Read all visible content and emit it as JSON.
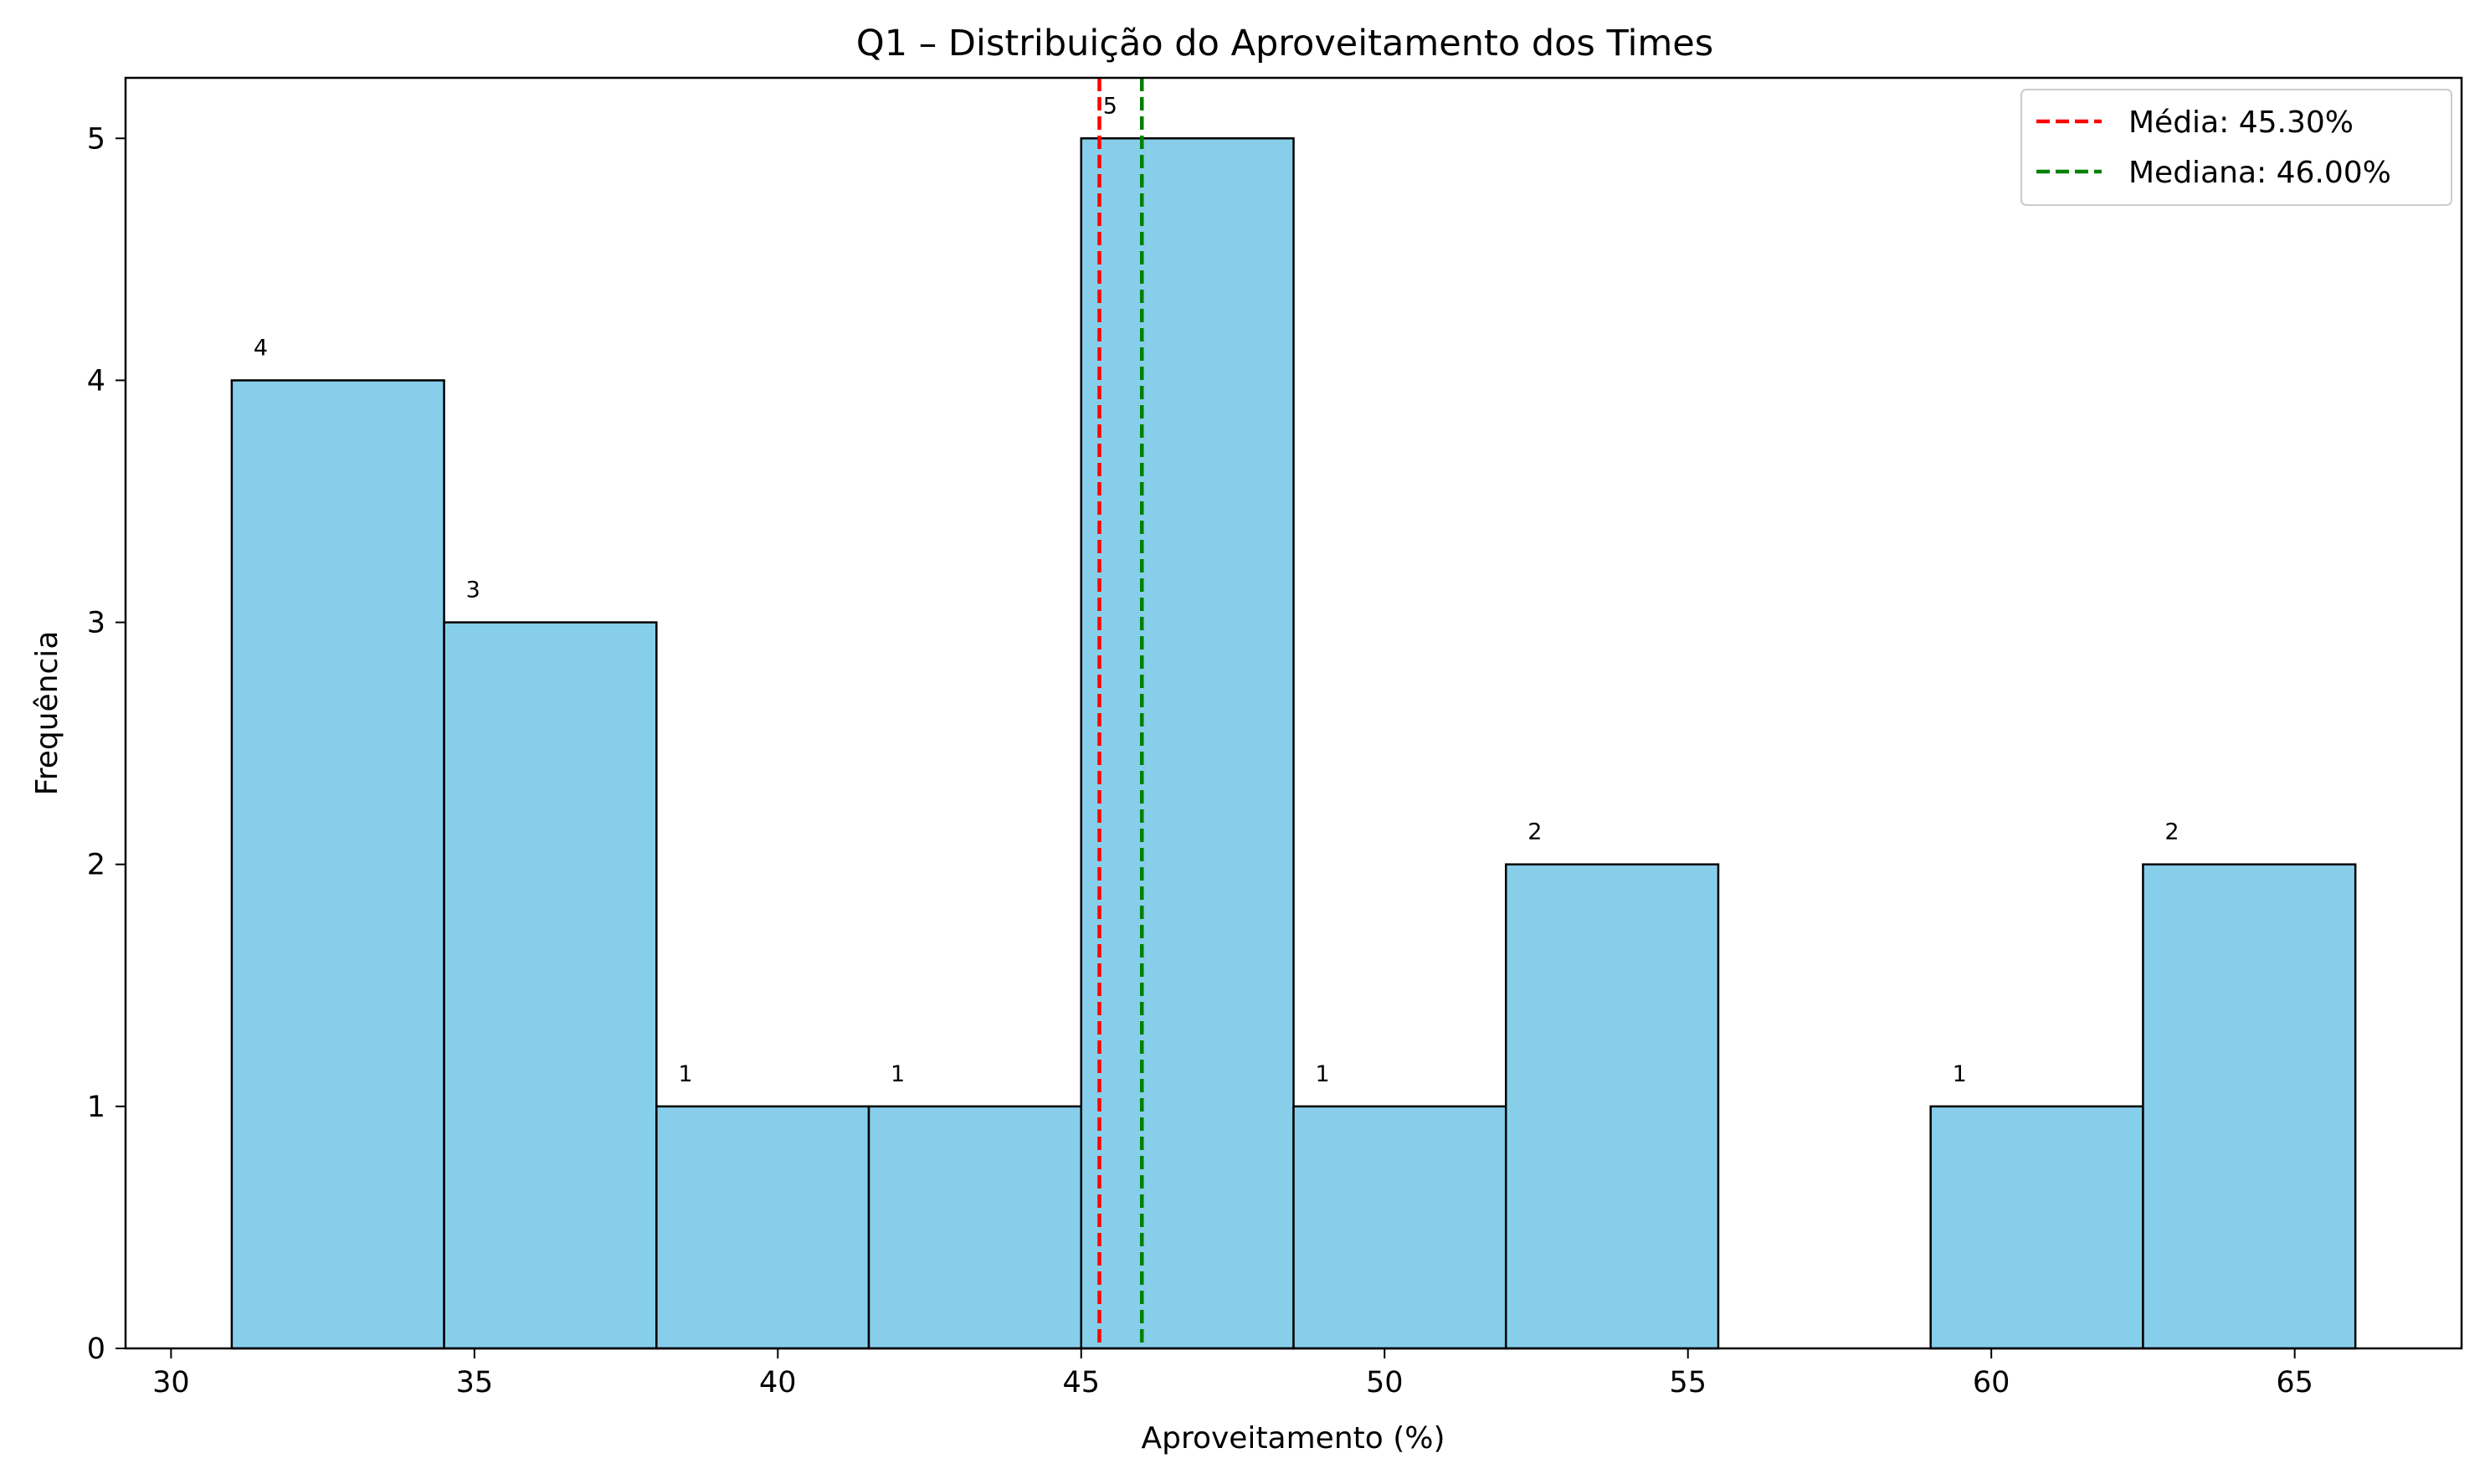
{
  "chart_data": {
    "type": "bar",
    "subtype": "histogram",
    "title": "Q1 – Distribuição do Aproveitamento dos Times",
    "xlabel": "Aproveitamento (%)",
    "ylabel": "Frequência",
    "xlim": [
      29.25,
      67.75
    ],
    "ylim": [
      0,
      5.25
    ],
    "xticks": [
      30,
      35,
      40,
      45,
      50,
      55,
      60,
      65
    ],
    "yticks": [
      0,
      1,
      2,
      3,
      4,
      5
    ],
    "bin_edges": [
      31,
      34.5,
      38,
      41.5,
      45,
      48.5,
      52,
      55.5,
      59,
      62.5,
      66
    ],
    "counts": [
      4,
      3,
      1,
      1,
      5,
      1,
      2,
      0,
      1,
      2
    ],
    "bar_color": "#87CEEB",
    "bar_edge_color": "#000000",
    "grid": false,
    "reference_lines": [
      {
        "name": "Média: 45.30%",
        "x": 45.3,
        "color": "#ff0000",
        "style": "dashed"
      },
      {
        "name": "Mediana: 46.00%",
        "x": 46.0,
        "color": "#008000",
        "style": "dashed"
      }
    ],
    "legend_position": "top-right"
  }
}
